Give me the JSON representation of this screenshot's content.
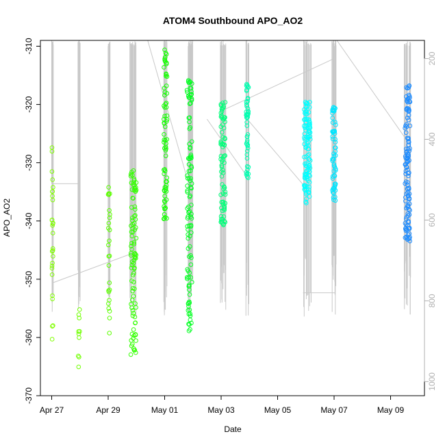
{
  "chart_data": {
    "type": "scatter",
    "title": "ATOM4 Southbound APO_AO2",
    "xlabel": "Date",
    "ylabel": "APO_AO2",
    "x_tick_labels": [
      "Apr 27",
      "Apr 29",
      "May 01",
      "May 03",
      "May 05",
      "May 07",
      "May 09"
    ],
    "x_tick_days": [
      0,
      2,
      4,
      6,
      8,
      10,
      12
    ],
    "xlim": [
      -0.4,
      13.2
    ],
    "ylim": [
      -370,
      -309
    ],
    "y_ticks": [
      -370,
      -360,
      -350,
      -340,
      -330,
      -320,
      -310
    ],
    "y_tick_labels": [
      "-370",
      "-360",
      "-350",
      "-340",
      "-330",
      "-320",
      "-310"
    ],
    "y2_label": "",
    "y2lim": [
      1035,
      155
    ],
    "y2_ticks": [
      200,
      400,
      600,
      800,
      1000
    ],
    "y2_tick_labels": [
      "200",
      "400",
      "600",
      "800",
      "1000"
    ],
    "y2_color": "#b0b0b0",
    "track_color": "#c8c8c8",
    "grid": false,
    "clusters": [
      {
        "center": 0.03,
        "spread": 0.02,
        "ymin": -360.5,
        "ymax": -326,
        "n": 28,
        "color": "#80ff00"
      },
      {
        "center": 0.97,
        "spread": 0.03,
        "ymin": -367.5,
        "ymax": -354,
        "n": 10,
        "color": "#70ff00"
      },
      {
        "center": 2.03,
        "spread": 0.03,
        "ymin": -359.5,
        "ymax": -332.5,
        "n": 26,
        "color": "#5cff00"
      },
      {
        "center": 2.9,
        "spread": 0.1,
        "ymin": -363,
        "ymax": -331,
        "n": 95,
        "color": "#33ff00"
      },
      {
        "center": 4.03,
        "spread": 0.06,
        "ymin": -340,
        "ymax": -310.5,
        "n": 70,
        "color": "#14ff00"
      },
      {
        "center": 4.88,
        "spread": 0.09,
        "ymin": -359,
        "ymax": -314.5,
        "n": 110,
        "color": "#00ff20"
      },
      {
        "center": 6.07,
        "spread": 0.08,
        "ymin": -341,
        "ymax": -318.5,
        "n": 80,
        "color": "#00ff7a"
      },
      {
        "center": 6.93,
        "spread": 0.04,
        "ymin": -334,
        "ymax": -316.5,
        "n": 50,
        "color": "#00ffb0"
      },
      {
        "center": 9.05,
        "spread": 0.11,
        "ymin": -337,
        "ymax": -319.5,
        "n": 110,
        "color": "#00ffff"
      },
      {
        "center": 10.0,
        "spread": 0.06,
        "ymin": -337,
        "ymax": -320,
        "n": 60,
        "color": "#00e5ff"
      },
      {
        "center": 12.6,
        "spread": 0.09,
        "ymin": -343.5,
        "ymax": -316.5,
        "n": 120,
        "color": "#1e8cff"
      }
    ]
  }
}
